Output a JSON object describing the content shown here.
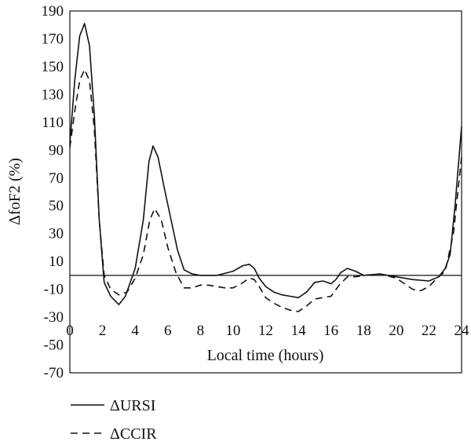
{
  "chart_data": {
    "type": "line",
    "xlabel": "Local time (hours)",
    "ylabel": "ΔfoF2 (%)",
    "xlim": [
      0,
      24
    ],
    "ylim": [
      -70,
      190
    ],
    "x_ticks": [
      0,
      2,
      4,
      6,
      8,
      10,
      12,
      14,
      16,
      18,
      20,
      22,
      24
    ],
    "y_ticks": [
      190,
      170,
      150,
      130,
      110,
      90,
      70,
      50,
      30,
      10,
      -10,
      -30,
      -50,
      -70
    ],
    "x_tick_labels": [
      "0",
      "2",
      "4",
      "6",
      "8",
      "10",
      "12",
      "14",
      "16",
      "18",
      "20",
      "22",
      "24"
    ],
    "y_tick_labels": [
      "190",
      "170",
      "150",
      "130",
      "110",
      "90",
      "70",
      "50",
      "30",
      "10",
      "-10",
      "-30",
      "-50",
      "-70"
    ],
    "zero_line": true,
    "grid": false,
    "legend_position": "below-left",
    "series": [
      {
        "name": "ΔURSI",
        "style": "solid",
        "color": "#111111",
        "points": [
          [
            0,
            95
          ],
          [
            0.3,
            140
          ],
          [
            0.6,
            172
          ],
          [
            0.9,
            181
          ],
          [
            1.2,
            165
          ],
          [
            1.5,
            115
          ],
          [
            1.8,
            40
          ],
          [
            2.1,
            -5
          ],
          [
            2.5,
            -15
          ],
          [
            3.0,
            -21
          ],
          [
            3.4,
            -15
          ],
          [
            4.0,
            5
          ],
          [
            4.5,
            40
          ],
          [
            4.85,
            82
          ],
          [
            5.1,
            93
          ],
          [
            5.4,
            85
          ],
          [
            5.8,
            62
          ],
          [
            6.2,
            40
          ],
          [
            6.6,
            18
          ],
          [
            7.0,
            4
          ],
          [
            7.5,
            1
          ],
          [
            8.0,
            0
          ],
          [
            9.0,
            0
          ],
          [
            10.0,
            3
          ],
          [
            10.6,
            7
          ],
          [
            11.0,
            8
          ],
          [
            11.3,
            5
          ],
          [
            11.6,
            -2
          ],
          [
            12.0,
            -8
          ],
          [
            12.5,
            -12
          ],
          [
            13.0,
            -14
          ],
          [
            13.5,
            -15
          ],
          [
            14.0,
            -16
          ],
          [
            14.5,
            -12
          ],
          [
            15.0,
            -5
          ],
          [
            15.5,
            -4
          ],
          [
            16.0,
            -6
          ],
          [
            16.3,
            -3
          ],
          [
            16.6,
            2
          ],
          [
            17.0,
            5
          ],
          [
            17.5,
            3
          ],
          [
            18.0,
            0
          ],
          [
            19.0,
            1
          ],
          [
            20.0,
            -1
          ],
          [
            21.0,
            -3
          ],
          [
            22.0,
            -4
          ],
          [
            22.6,
            -1
          ],
          [
            23.0,
            5
          ],
          [
            23.3,
            15
          ],
          [
            23.6,
            50
          ],
          [
            24.0,
            107
          ]
        ]
      },
      {
        "name": "ΔCCIR",
        "style": "dashed",
        "color": "#111111",
        "points": [
          [
            0,
            92
          ],
          [
            0.3,
            118
          ],
          [
            0.6,
            140
          ],
          [
            0.9,
            148
          ],
          [
            1.2,
            140
          ],
          [
            1.5,
            105
          ],
          [
            1.8,
            40
          ],
          [
            2.1,
            0
          ],
          [
            2.5,
            -10
          ],
          [
            3.0,
            -14
          ],
          [
            3.5,
            -12
          ],
          [
            4.0,
            -2
          ],
          [
            4.5,
            15
          ],
          [
            4.9,
            40
          ],
          [
            5.2,
            48
          ],
          [
            5.6,
            40
          ],
          [
            6.0,
            20
          ],
          [
            6.5,
            2
          ],
          [
            7.0,
            -9
          ],
          [
            7.5,
            -9
          ],
          [
            8.0,
            -7
          ],
          [
            8.5,
            -7
          ],
          [
            9.0,
            -8
          ],
          [
            9.5,
            -9
          ],
          [
            10.0,
            -9
          ],
          [
            10.5,
            -6
          ],
          [
            11.0,
            -2
          ],
          [
            11.3,
            -3
          ],
          [
            11.6,
            -8
          ],
          [
            12.0,
            -16
          ],
          [
            12.5,
            -20
          ],
          [
            13.0,
            -23
          ],
          [
            13.5,
            -25
          ],
          [
            14.0,
            -26
          ],
          [
            14.5,
            -22
          ],
          [
            15.0,
            -17
          ],
          [
            15.5,
            -16
          ],
          [
            16.0,
            -15
          ],
          [
            16.5,
            -7
          ],
          [
            17.0,
            -1
          ],
          [
            17.5,
            -1
          ],
          [
            18.0,
            0
          ],
          [
            19.0,
            1
          ],
          [
            20.0,
            -2
          ],
          [
            21.0,
            -10
          ],
          [
            21.5,
            -11
          ],
          [
            22.0,
            -8
          ],
          [
            22.5,
            -2
          ],
          [
            23.0,
            3
          ],
          [
            23.5,
            30
          ],
          [
            24.0,
            85
          ]
        ]
      }
    ]
  }
}
